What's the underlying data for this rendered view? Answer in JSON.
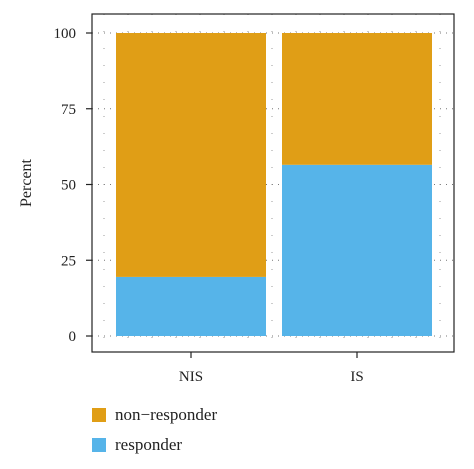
{
  "chart_data": {
    "type": "bar",
    "stacked": true,
    "categories": [
      "NIS",
      "IS"
    ],
    "series": [
      {
        "name": "responder",
        "color": "#56B4E9",
        "values": [
          19.5,
          56.5
        ]
      },
      {
        "name": "non−responder",
        "color": "#E09E16",
        "values": [
          80.5,
          43.5
        ]
      }
    ],
    "ylabel": "Percent",
    "xlabel": "",
    "ylim": [
      0,
      100
    ],
    "yticks": [
      0,
      25,
      50,
      75,
      100
    ],
    "grid": "dotted",
    "legend_position": "bottom-left",
    "legend_order": [
      "non−responder",
      "responder"
    ]
  }
}
